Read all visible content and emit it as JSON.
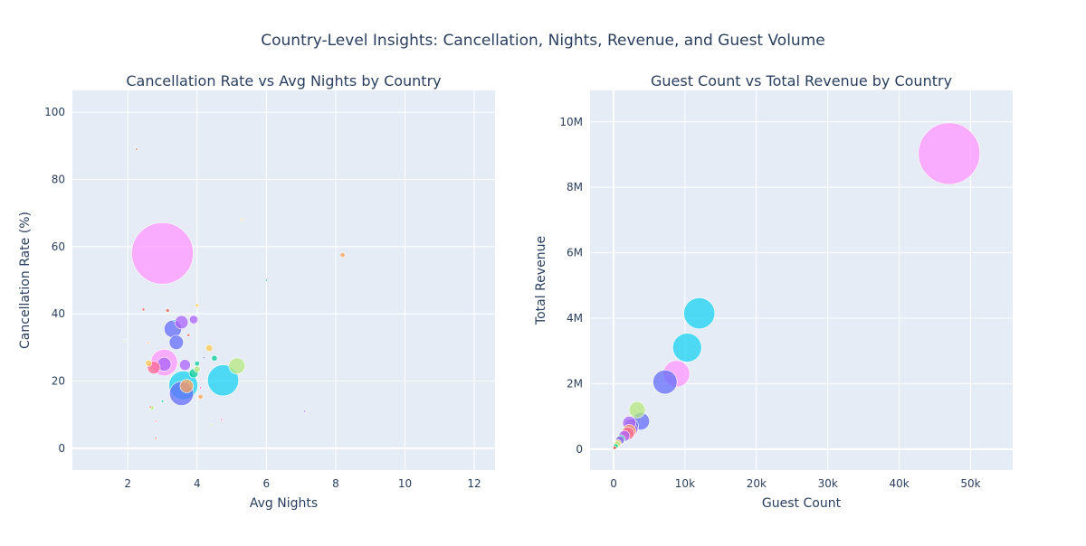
{
  "page": {
    "title": "Country-Level Insights: Cancellation, Nights, Revenue, and Guest Volume"
  },
  "colors": {
    "plot_bg": "#e5ecf6",
    "grid": "#ffffff",
    "text": "#2a3f5f"
  },
  "chart_data": [
    {
      "type": "scatter",
      "title": "Cancellation Rate vs Avg Nights by Country",
      "xlabel": "Avg Nights",
      "ylabel": "Cancellation Rate (%)",
      "xlim": [
        0.4,
        12.6
      ],
      "ylim": [
        -6.5,
        106.5
      ],
      "xticks": [
        2,
        4,
        6,
        8,
        10,
        12
      ],
      "yticks": [
        0,
        20,
        40,
        60,
        80,
        100
      ],
      "xtick_labels": [
        "2",
        "4",
        "6",
        "8",
        "10",
        "12"
      ],
      "ytick_labels": [
        "0",
        "20",
        "40",
        "60",
        "80",
        "100"
      ],
      "grid": true,
      "legend": "none",
      "points": [
        {
          "x": 3.0,
          "y": 58.0,
          "size": 47000,
          "color": "#FF97FF"
        },
        {
          "x": 4.75,
          "y": 20.2,
          "size": 12000,
          "color": "#19D3F3"
        },
        {
          "x": 3.6,
          "y": 18.7,
          "size": 10300,
          "color": "#19D3F3"
        },
        {
          "x": 3.55,
          "y": 16.3,
          "size": 7200,
          "color": "#636EFA"
        },
        {
          "x": 3.05,
          "y": 25.5,
          "size": 8800,
          "color": "#FF97FF"
        },
        {
          "x": 3.3,
          "y": 35.5,
          "size": 3800,
          "color": "#636EFA"
        },
        {
          "x": 3.4,
          "y": 31.5,
          "size": 2500,
          "color": "#636EFA"
        },
        {
          "x": 3.55,
          "y": 37.5,
          "size": 2200,
          "color": "#AB63FA"
        },
        {
          "x": 3.05,
          "y": 25.0,
          "size": 2400,
          "color": "#AB63FA"
        },
        {
          "x": 3.7,
          "y": 18.5,
          "size": 2200,
          "color": "#FFA15A"
        },
        {
          "x": 5.15,
          "y": 24.5,
          "size": 3300,
          "color": "#B6E880"
        },
        {
          "x": 2.75,
          "y": 24.0,
          "size": 2000,
          "color": "#FF6692"
        },
        {
          "x": 3.65,
          "y": 24.8,
          "size": 1500,
          "color": "#AB63FA"
        },
        {
          "x": 3.9,
          "y": 22.3,
          "size": 1000,
          "color": "#00CC96"
        },
        {
          "x": 3.9,
          "y": 38.3,
          "size": 900,
          "color": "#AB63FA"
        },
        {
          "x": 4.35,
          "y": 29.8,
          "size": 600,
          "color": "#FECB52"
        },
        {
          "x": 4.0,
          "y": 23.5,
          "size": 500,
          "color": "#B6E880"
        },
        {
          "x": 2.6,
          "y": 25.3,
          "size": 500,
          "color": "#FECB52"
        },
        {
          "x": 4.5,
          "y": 26.8,
          "size": 400,
          "color": "#00CC96"
        },
        {
          "x": 4.0,
          "y": 25.2,
          "size": 300,
          "color": "#00CC96"
        },
        {
          "x": 4.1,
          "y": 15.3,
          "size": 300,
          "color": "#FFA15A"
        },
        {
          "x": 8.2,
          "y": 57.5,
          "size": 300,
          "color": "#FFA15A"
        },
        {
          "x": 2.7,
          "y": 12.0,
          "size": 250,
          "color": "#B6E880"
        },
        {
          "x": 3.15,
          "y": 41.0,
          "size": 150,
          "color": "#EF553B"
        },
        {
          "x": 4.0,
          "y": 42.5,
          "size": 150,
          "color": "#FECB52"
        },
        {
          "x": 2.45,
          "y": 41.3,
          "size": 100,
          "color": "#EF553B"
        },
        {
          "x": 3.75,
          "y": 33.7,
          "size": 100,
          "color": "#EF553B"
        },
        {
          "x": 3.0,
          "y": 14.0,
          "size": 80,
          "color": "#00CC96"
        },
        {
          "x": 2.6,
          "y": 31.5,
          "size": 60,
          "color": "#FFA15A"
        },
        {
          "x": 2.8,
          "y": 3.0,
          "size": 40,
          "color": "#EF553B"
        },
        {
          "x": 2.8,
          "y": 8.0,
          "size": 40,
          "color": "#FF6692"
        },
        {
          "x": 4.7,
          "y": 8.5,
          "size": 40,
          "color": "#FF6692"
        },
        {
          "x": 4.4,
          "y": 7.0,
          "size": 30,
          "color": "#B6E880"
        },
        {
          "x": 2.65,
          "y": 12.3,
          "size": 40,
          "color": "#EF553B"
        },
        {
          "x": 4.2,
          "y": 27.0,
          "size": 60,
          "color": "#636EFA"
        },
        {
          "x": 3.35,
          "y": 38.0,
          "size": 60,
          "color": "#19D3F3"
        },
        {
          "x": 4.1,
          "y": 18.0,
          "size": 60,
          "color": "#FF6692"
        },
        {
          "x": 2.25,
          "y": 89.0,
          "size": 20,
          "color": "#EF553B"
        },
        {
          "x": 5.3,
          "y": 68.0,
          "size": 20,
          "color": "#FECB52"
        },
        {
          "x": 6.0,
          "y": 50.0,
          "size": 20,
          "color": "#00CC96"
        },
        {
          "x": 7.1,
          "y": 11.0,
          "size": 20,
          "color": "#AB63FA"
        },
        {
          "x": 1.9,
          "y": 32.0,
          "size": 20,
          "color": "#B6E880"
        }
      ]
    },
    {
      "type": "scatter",
      "title": "Guest Count vs Total Revenue by Country",
      "xlabel": "Guest Count",
      "ylabel": "Total Revenue",
      "xlim": [
        -3300,
        55900
      ],
      "ylim": [
        -640000,
        10960000
      ],
      "xticks": [
        0,
        10000,
        20000,
        30000,
        40000,
        50000
      ],
      "yticks": [
        0,
        2000000,
        4000000,
        6000000,
        8000000,
        10000000
      ],
      "xtick_labels": [
        "0",
        "10k",
        "20k",
        "30k",
        "40k",
        "50k"
      ],
      "ytick_labels": [
        "0",
        "2M",
        "4M",
        "6M",
        "8M",
        "10M"
      ],
      "grid": true,
      "legend": "none",
      "points": [
        {
          "x": 47000,
          "y": 9030000,
          "size": 47000,
          "color": "#FF97FF"
        },
        {
          "x": 12000,
          "y": 4150000,
          "size": 12000,
          "color": "#19D3F3"
        },
        {
          "x": 10300,
          "y": 3100000,
          "size": 10300,
          "color": "#19D3F3"
        },
        {
          "x": 8800,
          "y": 2300000,
          "size": 8800,
          "color": "#FF97FF"
        },
        {
          "x": 7200,
          "y": 2050000,
          "size": 7200,
          "color": "#636EFA"
        },
        {
          "x": 3300,
          "y": 1200000,
          "size": 3300,
          "color": "#B6E880"
        },
        {
          "x": 3800,
          "y": 850000,
          "size": 3800,
          "color": "#636EFA"
        },
        {
          "x": 2500,
          "y": 700000,
          "size": 2500,
          "color": "#636EFA"
        },
        {
          "x": 2200,
          "y": 800000,
          "size": 2200,
          "color": "#AB63FA"
        },
        {
          "x": 2400,
          "y": 600000,
          "size": 2400,
          "color": "#AB63FA"
        },
        {
          "x": 2200,
          "y": 550000,
          "size": 2200,
          "color": "#FFA15A"
        },
        {
          "x": 2000,
          "y": 480000,
          "size": 2000,
          "color": "#FF6692"
        },
        {
          "x": 1500,
          "y": 400000,
          "size": 1500,
          "color": "#AB63FA"
        },
        {
          "x": 1000,
          "y": 300000,
          "size": 1000,
          "color": "#00CC96"
        },
        {
          "x": 900,
          "y": 270000,
          "size": 900,
          "color": "#AB63FA"
        },
        {
          "x": 600,
          "y": 180000,
          "size": 600,
          "color": "#FECB52"
        },
        {
          "x": 500,
          "y": 150000,
          "size": 500,
          "color": "#B6E880"
        },
        {
          "x": 300,
          "y": 90000,
          "size": 300,
          "color": "#00CC96"
        },
        {
          "x": 150,
          "y": 40000,
          "size": 150,
          "color": "#EF553B"
        }
      ]
    }
  ]
}
